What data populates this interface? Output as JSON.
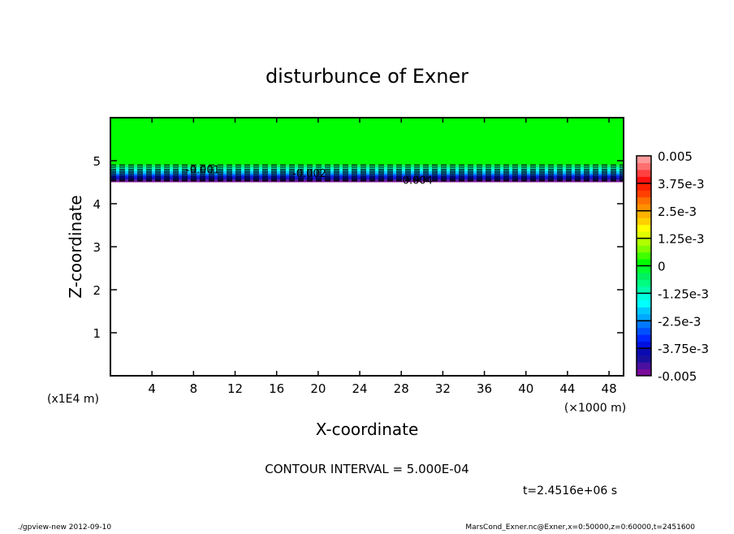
{
  "chart_data": {
    "type": "heatmap",
    "title": "disturbunce of Exner",
    "xlabel": "X-coordinate",
    "ylabel": "Z-coordinate",
    "x_unit": "(×1000 m)",
    "y_unit": "(x1E4 m)",
    "xlim": [
      0,
      49.4
    ],
    "ylim": [
      0,
      6
    ],
    "x_ticks": [
      4,
      8,
      12,
      16,
      20,
      24,
      28,
      32,
      36,
      40,
      44,
      48
    ],
    "y_ticks": [
      1,
      2,
      3,
      4,
      5
    ],
    "grid": false,
    "field_bands": [
      {
        "z_from": 4.9,
        "z_to": 6.0,
        "value": 0
      },
      {
        "z_from": 4.85,
        "z_to": 4.9,
        "value": -0.0005
      },
      {
        "z_from": 4.8,
        "z_to": 4.85,
        "value": -0.001
      },
      {
        "z_from": 4.76,
        "z_to": 4.8,
        "value": -0.0015
      },
      {
        "z_from": 4.72,
        "z_to": 4.76,
        "value": -0.002
      },
      {
        "z_from": 4.68,
        "z_to": 4.72,
        "value": -0.0025
      },
      {
        "z_from": 4.64,
        "z_to": 4.68,
        "value": -0.003
      },
      {
        "z_from": 4.6,
        "z_to": 4.64,
        "value": -0.0035
      },
      {
        "z_from": 4.56,
        "z_to": 4.6,
        "value": -0.004
      },
      {
        "z_from": 4.53,
        "z_to": 4.56,
        "value": -0.0045
      },
      {
        "z_from": 4.5,
        "z_to": 4.53,
        "value": -0.005
      }
    ],
    "contour_labels": [
      "-0.001",
      "-0.002",
      "-0.004"
    ],
    "contour_interval": "CONTOUR INTERVAL = 5.000E-04",
    "colorbar": {
      "range": [
        -0.005,
        0.005
      ],
      "tick_labels": [
        "0.005",
        "3.75e-3",
        "2.5e-3",
        "1.25e-3",
        "0",
        "-1.25e-3",
        "-2.5e-3",
        "-3.75e-3",
        "-0.005"
      ],
      "colors": [
        "#7a0a9a",
        "#4a10a0",
        "#1a10a0",
        "#0a0ab0",
        "#0010e0",
        "#0028ff",
        "#0050ff",
        "#0078ff",
        "#00a8ff",
        "#00c8ff",
        "#00ffff",
        "#00ffe0",
        "#00ffb0",
        "#00ff80",
        "#00f060",
        "#00ff30",
        "#00ff00",
        "#40ff00",
        "#80ff00",
        "#b0ff00",
        "#e0ff00",
        "#ffff00",
        "#ffd000",
        "#ffb000",
        "#ff9000",
        "#ff7000",
        "#ff4000",
        "#ff2000",
        "#ff1010",
        "#ff4040",
        "#ff7070",
        "#ff9a9a"
      ]
    }
  },
  "annotations": {
    "time": "t=2.4516e+06 s",
    "footer_left": "./gpview-new   2012-09-10",
    "footer_right": "MarsCond_Exner.nc@Exner,x=0:50000,z=0:60000,t=2451600"
  }
}
